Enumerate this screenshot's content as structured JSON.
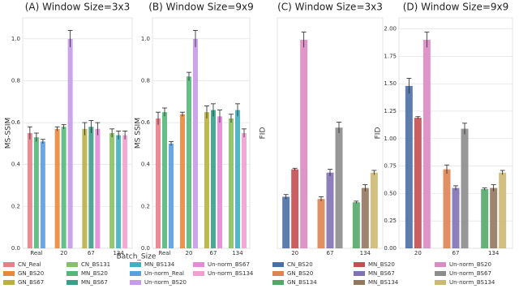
{
  "chart_data": [
    {
      "type": "bar",
      "title": "(A) Window Size=3x3",
      "x_label": "Batch_Size",
      "y_label": "MS-SSIM",
      "categories": [
        "Real",
        "20",
        "67",
        "134"
      ],
      "ylim": [
        0,
        1.1
      ],
      "yticks": [
        {
          "value": 0,
          "label": "0.0"
        },
        {
          "value": 0.2,
          "label": "0.2"
        },
        {
          "value": 0.4,
          "label": "0.4"
        },
        {
          "value": 0.6,
          "label": "0.6"
        },
        {
          "value": 0.8,
          "label": "0.8"
        },
        {
          "value": 1,
          "label": "1.0"
        }
      ],
      "series": [
        {
          "name": "CN_Real",
          "color": "#e8808a",
          "values": [
            0.55,
            null,
            null,
            null
          ],
          "errors": [
            0.03,
            null,
            null,
            null
          ]
        },
        {
          "name": "GN_BS20",
          "color": "#e8883a",
          "values": [
            null,
            0.57,
            null,
            null
          ],
          "errors": [
            null,
            0.01,
            null,
            null
          ]
        },
        {
          "name": "GN_BS67",
          "color": "#b8b040",
          "values": [
            null,
            null,
            0.57,
            null
          ],
          "errors": [
            null,
            null,
            0.03,
            null
          ]
        },
        {
          "name": "CN_BS131",
          "color": "#88c060",
          "values": [
            null,
            null,
            null,
            0.55
          ],
          "errors": [
            null,
            null,
            null,
            0.02
          ]
        },
        {
          "name": "MN_BS20",
          "color": "#55b87a",
          "values": [
            0.53,
            0.58,
            null,
            null
          ],
          "errors": [
            0.02,
            0.01,
            null,
            null
          ]
        },
        {
          "name": "MN_BS67",
          "color": "#3aa08a",
          "values": [
            null,
            null,
            0.58,
            null
          ],
          "errors": [
            null,
            null,
            0.03,
            null
          ]
        },
        {
          "name": "MN_BS134",
          "color": "#40b0c0",
          "values": [
            null,
            null,
            null,
            0.54
          ],
          "errors": [
            null,
            null,
            null,
            0.02
          ]
        },
        {
          "name": "Un-norm_Real",
          "color": "#5a9fe0",
          "values": [
            0.51,
            null,
            null,
            null
          ],
          "errors": [
            0.01,
            null,
            null,
            null
          ]
        },
        {
          "name": "Un-norm_BS20",
          "color": "#c59ae8",
          "values": [
            null,
            1.0,
            null,
            null
          ],
          "errors": [
            null,
            0.04,
            null,
            null
          ]
        },
        {
          "name": "Un-norm_BS67",
          "color": "#e38ad8",
          "values": [
            null,
            null,
            0.57,
            null
          ],
          "errors": [
            null,
            null,
            0.03,
            null
          ]
        },
        {
          "name": "Un-norm_BS134",
          "color": "#f0a0d0",
          "values": [
            null,
            null,
            null,
            0.54
          ],
          "errors": [
            null,
            null,
            null,
            0.02
          ]
        }
      ]
    },
    {
      "type": "bar",
      "title": "(B) Window Size=9x9",
      "y_label": "MS SSIM",
      "categories": [
        "Real",
        "20",
        "67",
        "134"
      ],
      "ylim": [
        0,
        1.1
      ],
      "yticks": [
        {
          "value": 0,
          "label": "0.0"
        },
        {
          "value": 0.2,
          "label": "0.2"
        },
        {
          "value": 0.4,
          "label": "0.4"
        },
        {
          "value": 0.6,
          "label": "0.6"
        },
        {
          "value": 0.8,
          "label": "0.8"
        },
        {
          "value": 1,
          "label": "1.0"
        }
      ],
      "series": [
        {
          "color": "#e8808a",
          "values": [
            0.62,
            null,
            null,
            null
          ],
          "errors": [
            0.03,
            null,
            null,
            null
          ]
        },
        {
          "color": "#e8883a",
          "values": [
            null,
            0.64,
            null,
            null
          ],
          "errors": [
            null,
            0.01,
            null,
            null
          ]
        },
        {
          "color": "#b8b040",
          "values": [
            null,
            null,
            0.65,
            null
          ],
          "errors": [
            null,
            null,
            0.03,
            null
          ]
        },
        {
          "color": "#88c060",
          "values": [
            null,
            null,
            null,
            0.62
          ],
          "errors": [
            null,
            null,
            null,
            0.02
          ]
        },
        {
          "color": "#55b87a",
          "values": [
            0.65,
            0.82,
            null,
            null
          ],
          "errors": [
            0.02,
            0.02,
            null,
            null
          ]
        },
        {
          "color": "#3aa08a",
          "values": [
            null,
            null,
            0.66,
            null
          ],
          "errors": [
            null,
            null,
            0.03,
            null
          ]
        },
        {
          "color": "#40b0c0",
          "values": [
            null,
            null,
            null,
            0.66
          ],
          "errors": [
            null,
            null,
            null,
            0.03
          ]
        },
        {
          "color": "#5a9fe0",
          "values": [
            0.5,
            null,
            null,
            null
          ],
          "errors": [
            0.01,
            null,
            null,
            null
          ]
        },
        {
          "color": "#c59ae8",
          "values": [
            null,
            1.0,
            null,
            null
          ],
          "errors": [
            null,
            0.04,
            null,
            null
          ]
        },
        {
          "color": "#e38ad8",
          "values": [
            null,
            null,
            0.63,
            null
          ],
          "errors": [
            null,
            null,
            0.03,
            null
          ]
        },
        {
          "color": "#f0a0d0",
          "values": [
            null,
            null,
            null,
            0.55
          ],
          "errors": [
            null,
            null,
            null,
            0.02
          ]
        }
      ]
    },
    {
      "type": "bar",
      "title": "(C) Window Size=3x3",
      "y_label": "FID",
      "categories": [
        "20",
        "67",
        "134"
      ],
      "ylim": [
        0,
        2.1
      ],
      "series": [
        {
          "name": "CN_BS20",
          "color": "#4a6fa5",
          "values": [
            0.47,
            null,
            null
          ],
          "errors": [
            0.02,
            null,
            null
          ]
        },
        {
          "name": "GN_BS20",
          "color": "#dd8452",
          "values": [
            null,
            0.45,
            null
          ],
          "errors": [
            null,
            0.02,
            null
          ]
        },
        {
          "name": "GN_BS134",
          "color": "#55a868",
          "values": [
            null,
            null,
            0.42
          ],
          "errors": [
            null,
            null,
            0.01
          ]
        },
        {
          "name": "MN_BS20",
          "color": "#c44e52",
          "values": [
            0.72,
            null,
            null
          ],
          "errors": [
            0.01,
            null,
            null
          ]
        },
        {
          "name": "MN_BS67",
          "color": "#8172b3",
          "values": [
            null,
            0.69,
            null
          ],
          "errors": [
            null,
            0.03,
            null
          ]
        },
        {
          "name": "MN_BS134",
          "color": "#937860",
          "values": [
            null,
            null,
            0.55
          ],
          "errors": [
            null,
            null,
            0.03
          ]
        },
        {
          "name": "Un-norm_BS20",
          "color": "#da8bc3",
          "values": [
            1.9,
            null,
            null
          ],
          "errors": [
            0.07,
            null,
            null
          ]
        },
        {
          "name": "Un-norm_BS67",
          "color": "#8c8c8c",
          "values": [
            null,
            1.1,
            null
          ],
          "errors": [
            null,
            0.05,
            null
          ]
        },
        {
          "name": "Un-norm_BS134",
          "color": "#ccb974",
          "values": [
            null,
            null,
            0.69
          ],
          "errors": [
            null,
            null,
            0.02
          ]
        }
      ]
    },
    {
      "type": "bar",
      "title": "(D) Window Size=9x9",
      "y_label": "FID",
      "categories": [
        "20",
        "67",
        "134"
      ],
      "ylim": [
        0,
        2.1
      ],
      "yticks": [
        {
          "value": 0,
          "label": "0.00"
        },
        {
          "value": 0.25,
          "label": "0.25"
        },
        {
          "value": 0.5,
          "label": "0.50"
        },
        {
          "value": 0.75,
          "label": "0.75"
        },
        {
          "value": 1,
          "label": "1.00"
        },
        {
          "value": 1.25,
          "label": "1.25"
        },
        {
          "value": 1.5,
          "label": "1.50"
        },
        {
          "value": 1.75,
          "label": "1.75"
        },
        {
          "value": 2,
          "label": "2.00"
        }
      ],
      "series": [
        {
          "color": "#4a6fa5",
          "values": [
            1.48,
            null,
            null
          ],
          "errors": [
            0.07,
            null,
            null
          ]
        },
        {
          "color": "#dd8452",
          "values": [
            null,
            0.72,
            null
          ],
          "errors": [
            null,
            0.04,
            null
          ]
        },
        {
          "color": "#55a868",
          "values": [
            null,
            null,
            0.54
          ],
          "errors": [
            null,
            null,
            0.01
          ]
        },
        {
          "color": "#c44e52",
          "values": [
            1.19,
            null,
            null
          ],
          "errors": [
            0.01,
            null,
            null
          ]
        },
        {
          "color": "#8172b3",
          "values": [
            null,
            0.55,
            null
          ],
          "errors": [
            null,
            0.02,
            null
          ]
        },
        {
          "color": "#937860",
          "values": [
            null,
            null,
            0.55
          ],
          "errors": [
            null,
            null,
            0.03
          ]
        },
        {
          "color": "#da8bc3",
          "values": [
            1.9,
            null,
            null
          ],
          "errors": [
            0.07,
            null,
            null
          ]
        },
        {
          "color": "#8c8c8c",
          "values": [
            null,
            1.09,
            null
          ],
          "errors": [
            null,
            0.05,
            null
          ]
        },
        {
          "color": "#ccb974",
          "values": [
            null,
            null,
            0.69
          ],
          "errors": [
            null,
            null,
            0.02
          ]
        }
      ]
    }
  ]
}
